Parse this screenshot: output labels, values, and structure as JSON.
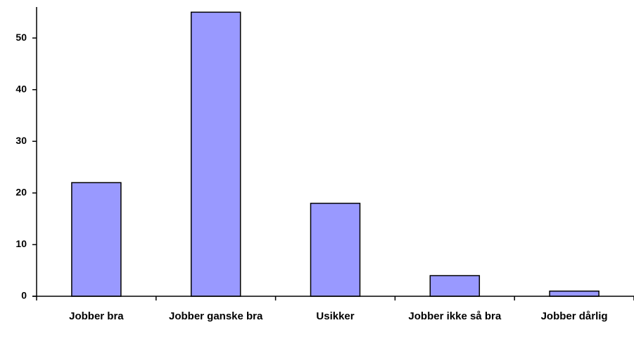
{
  "chart_data": {
    "type": "bar",
    "categories": [
      "Jobber bra",
      "Jobber ganske bra",
      "Usikker",
      "Jobber ikke så bra",
      "Jobber dårlig"
    ],
    "values": [
      22,
      55,
      18,
      4,
      1
    ],
    "color": "#9999ff",
    "ylim": [
      0,
      56
    ],
    "yticks": [
      0,
      10,
      20,
      30,
      40,
      50
    ],
    "grid": false
  }
}
